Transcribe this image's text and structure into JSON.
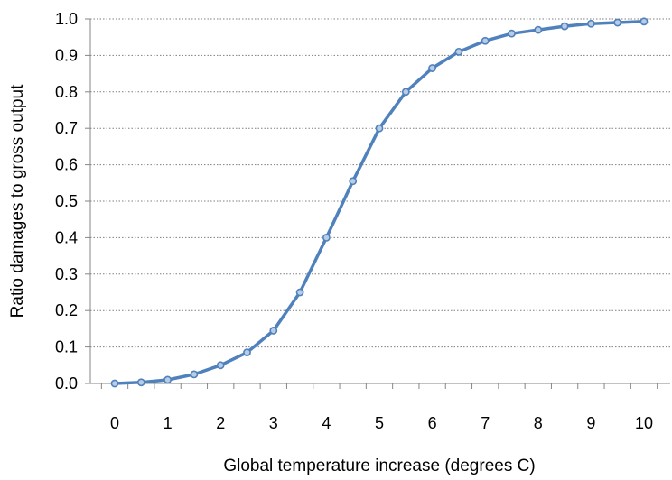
{
  "chart_data": {
    "type": "line",
    "title": "",
    "xlabel": "Global temperature increase (degrees C)",
    "ylabel": "Ratio damages to gross output",
    "xlim": [
      0,
      10
    ],
    "ylim": [
      0,
      1.0
    ],
    "grid": "horizontal-dotted",
    "legend": "none",
    "x_ticks": [
      "0",
      "1",
      "2",
      "3",
      "4",
      "5",
      "6",
      "7",
      "8",
      "9",
      "10"
    ],
    "y_ticks": [
      "0.0",
      "0.1",
      "0.2",
      "0.3",
      "0.4",
      "0.5",
      "0.6",
      "0.7",
      "0.8",
      "0.9",
      "1.0"
    ],
    "series": [
      {
        "color": "#4f81bd",
        "marker_fill": "#b8cce4",
        "x": [
          0,
          0.5,
          1,
          1.5,
          2,
          2.5,
          3,
          3.5,
          4,
          4.5,
          5,
          5.5,
          6,
          6.5,
          7,
          7.5,
          8,
          8.5,
          9,
          9.5,
          10
        ],
        "y": [
          0.0,
          0.003,
          0.01,
          0.025,
          0.05,
          0.085,
          0.145,
          0.25,
          0.4,
          0.555,
          0.7,
          0.8,
          0.865,
          0.91,
          0.94,
          0.96,
          0.97,
          0.98,
          0.987,
          0.99,
          0.993
        ]
      }
    ]
  }
}
